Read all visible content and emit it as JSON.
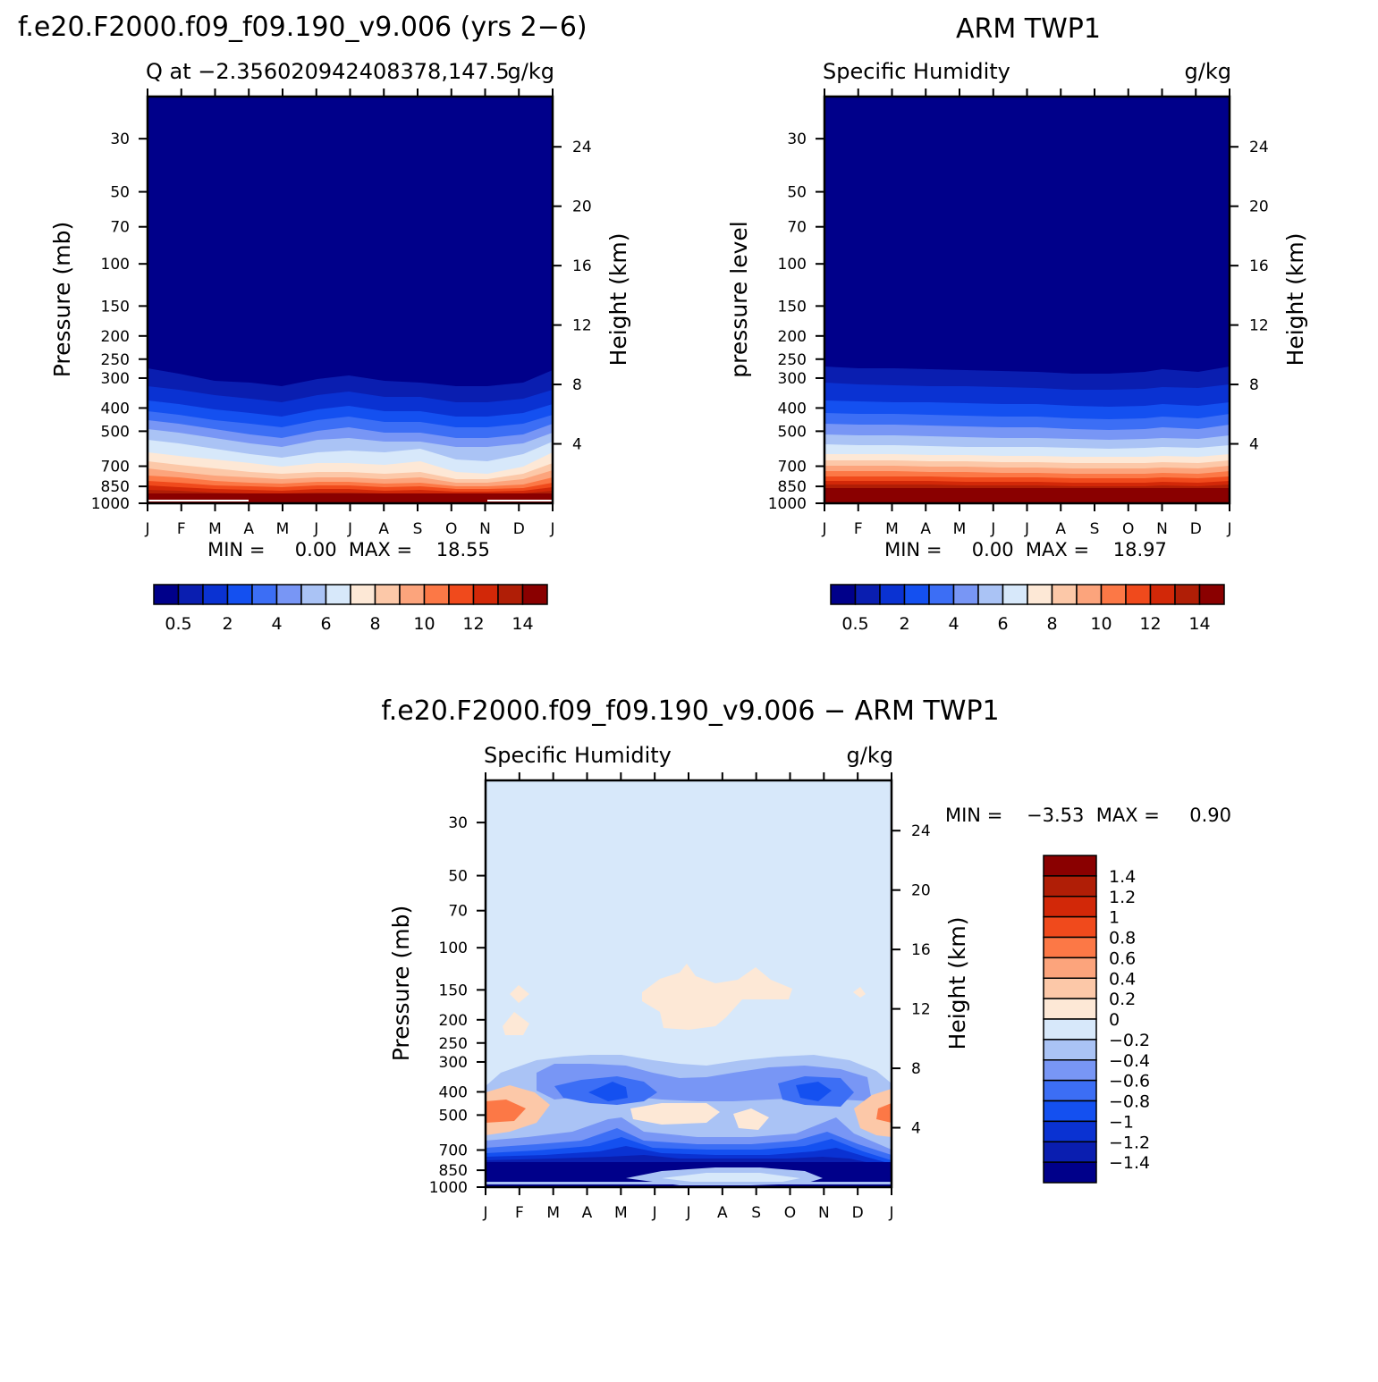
{
  "panels": {
    "model": {
      "heading": "f.e20.F2000.f09_f09.190_v9.006 (yrs 2−6)",
      "left_title": "Q at −2.356020942408378,147.5",
      "right_title": "g/kg",
      "ylabel": "Pressure (mb)",
      "y2label": "Height (km)",
      "stats": "MIN =     0.00  MAX =    18.55"
    },
    "obs": {
      "heading": "ARM TWP1",
      "left_title": "Specific Humidity",
      "right_title": "g/kg",
      "ylabel": "pressure level",
      "y2label": "Height (km)",
      "stats": "MIN =     0.00  MAX =    18.97"
    },
    "diff": {
      "heading": "f.e20.F2000.f09_f09.190_v9.006 − ARM TWP1",
      "left_title": "Specific Humidity",
      "right_title": "g/kg",
      "ylabel": "Pressure (mb)",
      "y2label": "Height (km)",
      "stats": "MIN =    −3.53  MAX =     0.90"
    }
  },
  "chart_data": [
    {
      "type": "heatmap",
      "title": "Q at −2.356020942408378,147.5",
      "units": "g/kg",
      "x_ticks": [
        "J",
        "F",
        "M",
        "A",
        "M",
        "J",
        "J",
        "A",
        "S",
        "O",
        "N",
        "D",
        "J"
      ],
      "y_ticks": [
        30,
        50,
        70,
        100,
        150,
        200,
        250,
        300,
        400,
        500,
        700,
        850,
        1000
      ],
      "y_scale": "log",
      "ylim": [
        1000,
        20
      ],
      "y2_ticks": [
        4,
        8,
        12,
        16,
        20,
        24
      ],
      "levels": [
        0.5,
        1,
        2,
        3,
        4,
        5,
        6,
        7,
        8,
        9,
        10,
        11,
        12,
        13,
        14
      ],
      "colorbar_labels": [
        "0.5",
        "2",
        "4",
        "6",
        "8",
        "10",
        "12",
        "14"
      ],
      "min": 0.0,
      "max": 18.55,
      "lowest_contour_pressure_by_level": {
        "note_levels": [
          0.5,
          2,
          5,
          8,
          11,
          14
        ],
        "J": [
          300,
          400,
          470,
          600,
          780,
          900
        ],
        "M": [
          330,
          430,
          520,
          700,
          840,
          930
        ],
        "J2": [
          320,
          420,
          510,
          690,
          830,
          920
        ],
        "O": [
          335,
          440,
          540,
          730,
          860,
          935
        ],
        "J3": [
          300,
          400,
          470,
          600,
          780,
          900
        ]
      }
    },
    {
      "type": "heatmap",
      "title": "Specific Humidity",
      "units": "g/kg",
      "x_ticks": [
        "J",
        "F",
        "M",
        "A",
        "M",
        "J",
        "J",
        "A",
        "S",
        "O",
        "N",
        "D",
        "J"
      ],
      "y_ticks": [
        30,
        50,
        70,
        100,
        150,
        200,
        250,
        300,
        400,
        500,
        700,
        850,
        1000
      ],
      "y_scale": "log",
      "ylim": [
        1000,
        20
      ],
      "y2_ticks": [
        4,
        8,
        12,
        16,
        20,
        24
      ],
      "levels": [
        0.5,
        1,
        2,
        3,
        4,
        5,
        6,
        7,
        8,
        9,
        10,
        11,
        12,
        13,
        14
      ],
      "colorbar_labels": [
        "0.5",
        "2",
        "4",
        "6",
        "8",
        "10",
        "12",
        "14"
      ],
      "min": 0.0,
      "max": 18.97
    },
    {
      "type": "heatmap",
      "title": "Specific Humidity",
      "units": "g/kg",
      "x_ticks": [
        "J",
        "F",
        "M",
        "A",
        "M",
        "J",
        "J",
        "A",
        "S",
        "O",
        "N",
        "D",
        "J"
      ],
      "y_ticks": [
        30,
        50,
        70,
        100,
        150,
        200,
        250,
        300,
        400,
        500,
        700,
        850,
        1000
      ],
      "y_scale": "log",
      "ylim": [
        1000,
        20
      ],
      "y2_ticks": [
        4,
        8,
        12,
        16,
        20,
        24
      ],
      "levels": [
        -1.4,
        -1.2,
        -1,
        -0.8,
        -0.6,
        -0.4,
        -0.2,
        0,
        0.2,
        0.4,
        0.6,
        0.8,
        1,
        1.2,
        1.4
      ],
      "colorbar_labels": [
        "1.4",
        "1.2",
        "1",
        "0.8",
        "0.6",
        "0.4",
        "0.2",
        "0",
        "−0.2",
        "−0.4",
        "−0.6",
        "−0.8",
        "−1",
        "−1.2",
        "−1.4"
      ],
      "min": -3.53,
      "max": 0.9
    }
  ],
  "colors": {
    "palette": [
      "#00008a",
      "#0a1eb0",
      "#0a32d2",
      "#1450f0",
      "#3c6ef5",
      "#7896f5",
      "#aac3f5",
      "#d7e8fa",
      "#fde8d6",
      "#fcc8a8",
      "#fca47c",
      "#fc7846",
      "#f04a1c",
      "#d22808",
      "#b01e06",
      "#8a0000"
    ]
  }
}
